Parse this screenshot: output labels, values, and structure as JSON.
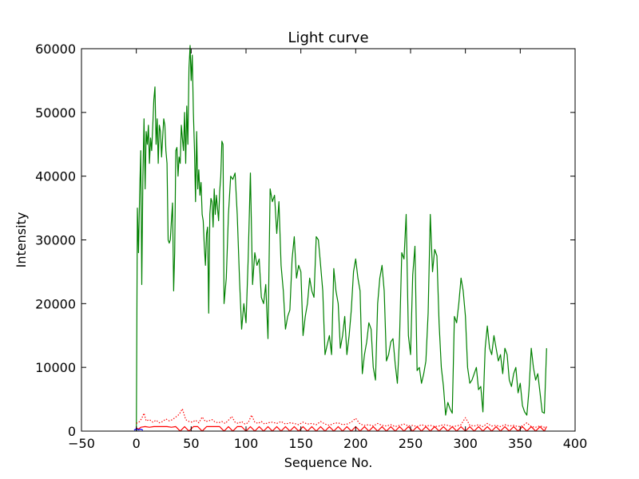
{
  "chart_data": {
    "type": "line",
    "title": "Light curve",
    "xlabel": "Sequence No.",
    "ylabel": "Intensity",
    "xlim": [
      -50,
      400
    ],
    "ylim": [
      0,
      60000
    ],
    "xticks": [
      -50,
      0,
      50,
      100,
      150,
      200,
      250,
      300,
      350,
      400
    ],
    "yticks": [
      0,
      10000,
      20000,
      30000,
      40000,
      50000,
      60000
    ],
    "xtick_labels": [
      "−50",
      "0",
      "50",
      "100",
      "150",
      "200",
      "250",
      "300",
      "350",
      "400"
    ],
    "ytick_labels": [
      "0",
      "10000",
      "20000",
      "30000",
      "40000",
      "50000",
      "60000"
    ],
    "grid": false,
    "series": [
      {
        "color": "#008000",
        "style": "solid",
        "x": [
          0,
          1,
          2,
          3,
          4,
          5,
          6,
          7,
          8,
          9,
          10,
          11,
          12,
          13,
          14,
          15,
          16,
          17,
          18,
          19,
          20,
          21,
          22,
          23,
          24,
          25,
          26,
          27,
          28,
          29,
          30,
          31,
          32,
          33,
          34,
          35,
          36,
          37,
          38,
          39,
          40,
          41,
          42,
          43,
          44,
          45,
          46,
          47,
          48,
          49,
          50,
          51,
          52,
          53,
          54,
          55,
          56,
          57,
          58,
          59,
          60,
          61,
          62,
          63,
          64,
          65,
          66,
          67,
          68,
          69,
          70,
          71,
          72,
          73,
          74,
          75,
          76,
          77,
          78,
          79,
          80,
          82,
          84,
          86,
          88,
          90,
          92,
          94,
          96,
          98,
          100,
          102,
          104,
          106,
          108,
          110,
          112,
          114,
          116,
          118,
          120,
          122,
          124,
          126,
          128,
          130,
          132,
          134,
          136,
          138,
          140,
          142,
          144,
          146,
          148,
          150,
          152,
          154,
          156,
          158,
          160,
          162,
          164,
          166,
          168,
          170,
          172,
          174,
          176,
          178,
          180,
          182,
          184,
          186,
          188,
          190,
          192,
          194,
          196,
          198,
          200,
          202,
          204,
          206,
          208,
          210,
          212,
          214,
          216,
          218,
          220,
          222,
          224,
          226,
          228,
          230,
          232,
          234,
          236,
          238,
          240,
          242,
          244,
          246,
          248,
          250,
          252,
          254,
          256,
          258,
          260,
          262,
          264,
          266,
          268,
          270,
          272,
          274,
          276,
          278,
          280,
          282,
          284,
          286,
          288,
          290,
          292,
          294,
          296,
          298,
          300,
          302,
          304,
          306,
          308,
          310,
          312,
          314,
          316,
          318,
          320,
          322,
          324,
          326,
          328,
          330,
          332,
          334,
          336,
          338,
          340,
          342,
          344,
          346,
          348,
          350,
          352,
          354,
          356,
          358,
          360,
          362,
          364,
          366,
          368,
          370,
          372,
          374
        ],
        "y": [
          0,
          35000,
          28000,
          37000,
          44000,
          23000,
          40000,
          49000,
          38000,
          47000,
          45000,
          48000,
          42000,
          46000,
          44000,
          48000,
          52000,
          54000,
          45000,
          49000,
          42000,
          48000,
          47000,
          43000,
          46000,
          49000,
          48000,
          44000,
          42000,
          30000,
          29500,
          30000,
          33000,
          35800,
          22000,
          28000,
          44000,
          44500,
          40000,
          43000,
          42000,
          48000,
          46000,
          44000,
          50000,
          42000,
          51000,
          45000,
          57000,
          60500,
          55000,
          59000,
          50000,
          44000,
          36000,
          47000,
          38000,
          41000,
          37000,
          39000,
          34000,
          33000,
          29000,
          26000,
          31000,
          32000,
          18500,
          34000,
          36500,
          36000,
          32000,
          38000,
          34000,
          37000,
          35000,
          33000,
          37500,
          40000,
          45500,
          45000,
          20000,
          24000,
          34000,
          40000,
          39500,
          40500,
          34000,
          24000,
          16000,
          20000,
          17000,
          27000,
          40500,
          23000,
          28000,
          26000,
          27000,
          21000,
          20000,
          23000,
          14500,
          38000,
          36000,
          37000,
          31000,
          36000,
          26000,
          22000,
          16000,
          18000,
          19000,
          27000,
          30500,
          24000,
          26000,
          25000,
          15000,
          18000,
          20000,
          24000,
          22000,
          21000,
          30500,
          30000,
          26000,
          22000,
          12000,
          13500,
          15000,
          12000,
          25500,
          22000,
          20000,
          13000,
          15000,
          18000,
          12000,
          15000,
          19000,
          25000,
          27000,
          24000,
          22000,
          9000,
          12000,
          14000,
          17000,
          16000,
          10000,
          8000,
          20000,
          24000,
          26000,
          22000,
          11000,
          12000,
          14000,
          14500,
          10500,
          7500,
          15000,
          28000,
          27000,
          34000,
          15000,
          12000,
          24500,
          29000,
          9500,
          10000,
          7500,
          9000,
          11000,
          18500,
          34000,
          25000,
          28500,
          27500,
          17000,
          10000,
          7000,
          2500,
          4500,
          3500,
          2800,
          18000,
          17000,
          20000,
          24000,
          22000,
          18000,
          10000,
          7500,
          8000,
          9000,
          10000,
          6500,
          7000,
          3000,
          13000,
          16500,
          13000,
          12000,
          15000,
          13000,
          11000,
          12000,
          9000,
          13000,
          12000,
          8000,
          7000,
          9000,
          10000,
          6000,
          7500,
          4000,
          3000,
          2500,
          6500,
          13000,
          10000,
          8000,
          9000,
          6000,
          3000,
          2800,
          13000
        ]
      },
      {
        "color": "#ff0000",
        "style": "solid",
        "x": [
          0,
          2,
          4,
          8,
          12,
          16,
          20,
          24,
          28,
          32,
          36,
          40,
          44,
          48,
          52,
          56,
          60,
          64,
          68,
          72,
          76,
          80,
          84,
          88,
          92,
          96,
          100,
          104,
          108,
          112,
          116,
          120,
          124,
          128,
          132,
          136,
          140,
          144,
          148,
          152,
          156,
          160,
          164,
          168,
          172,
          176,
          180,
          184,
          188,
          192,
          196,
          200,
          204,
          208,
          212,
          216,
          220,
          224,
          228,
          232,
          236,
          240,
          244,
          248,
          252,
          256,
          260,
          264,
          268,
          272,
          276,
          280,
          284,
          288,
          292,
          296,
          300,
          304,
          308,
          312,
          316,
          320,
          324,
          328,
          332,
          336,
          340,
          344,
          348,
          352,
          356,
          360,
          364,
          368,
          372,
          374
        ],
        "y": [
          500,
          300,
          600,
          700,
          600,
          700,
          700,
          700,
          700,
          600,
          700,
          0,
          700,
          0,
          700,
          700,
          0,
          700,
          700,
          700,
          700,
          0,
          700,
          0,
          700,
          700,
          0,
          700,
          0,
          700,
          0,
          700,
          0,
          700,
          0,
          700,
          0,
          700,
          0,
          700,
          0,
          700,
          0,
          700,
          0,
          700,
          0,
          700,
          0,
          700,
          0,
          700,
          0,
          700,
          0,
          700,
          0,
          700,
          0,
          700,
          0,
          700,
          0,
          700,
          0,
          700,
          0,
          700,
          0,
          700,
          0,
          700,
          0,
          700,
          0,
          700,
          0,
          700,
          0,
          700,
          0,
          700,
          0,
          700,
          0,
          700,
          0,
          700,
          0,
          700,
          0,
          700,
          0,
          700,
          0,
          700
        ]
      },
      {
        "color": "#ff0000",
        "style": "dotted",
        "x": [
          0,
          3,
          5,
          7,
          9,
          12,
          15,
          18,
          21,
          24,
          27,
          30,
          33,
          36,
          39,
          42,
          45,
          48,
          51,
          54,
          57,
          60,
          63,
          66,
          69,
          72,
          75,
          78,
          81,
          84,
          87,
          90,
          93,
          96,
          99,
          102,
          105,
          108,
          111,
          114,
          117,
          120,
          124,
          128,
          132,
          136,
          140,
          144,
          148,
          152,
          156,
          160,
          164,
          168,
          172,
          176,
          180,
          184,
          188,
          192,
          196,
          200,
          204,
          208,
          212,
          216,
          220,
          224,
          228,
          232,
          236,
          240,
          244,
          248,
          252,
          256,
          260,
          264,
          268,
          272,
          276,
          280,
          284,
          288,
          292,
          296,
          300,
          304,
          308,
          312,
          316,
          320,
          324,
          328,
          332,
          336,
          340,
          344,
          348,
          352,
          356,
          360,
          364,
          368,
          372,
          374
        ],
        "y": [
          1200,
          1500,
          2000,
          2800,
          1600,
          1800,
          1400,
          1700,
          1300,
          1500,
          1900,
          1600,
          1800,
          2200,
          2600,
          3500,
          1800,
          1500,
          1400,
          1700,
          1300,
          2200,
          1500,
          1600,
          1800,
          1400,
          1300,
          1500,
          1200,
          1700,
          2300,
          1400,
          1200,
          1500,
          1100,
          1300,
          2500,
          1400,
          1200,
          1500,
          1100,
          1300,
          1400,
          1200,
          1500,
          1100,
          1300,
          1200,
          1000,
          1400,
          1100,
          1200,
          1000,
          1500,
          1100,
          900,
          1200,
          1300,
          1000,
          1100,
          1400,
          2000,
          1100,
          900,
          1000,
          800,
          1200,
          900,
          800,
          1000,
          700,
          900,
          1100,
          800,
          900,
          700,
          1000,
          800,
          900,
          700,
          800,
          1000,
          900,
          700,
          800,
          1000,
          2100,
          900,
          800,
          1000,
          700,
          1200,
          800,
          900,
          700,
          1000,
          800,
          900,
          700,
          800,
          1300,
          700,
          600,
          800,
          600,
          700
        ]
      },
      {
        "color": "#0000ff",
        "style": "solid",
        "x": [
          -2,
          0,
          2,
          4,
          6
        ],
        "y": [
          150,
          350,
          200,
          300,
          150
        ]
      }
    ]
  }
}
